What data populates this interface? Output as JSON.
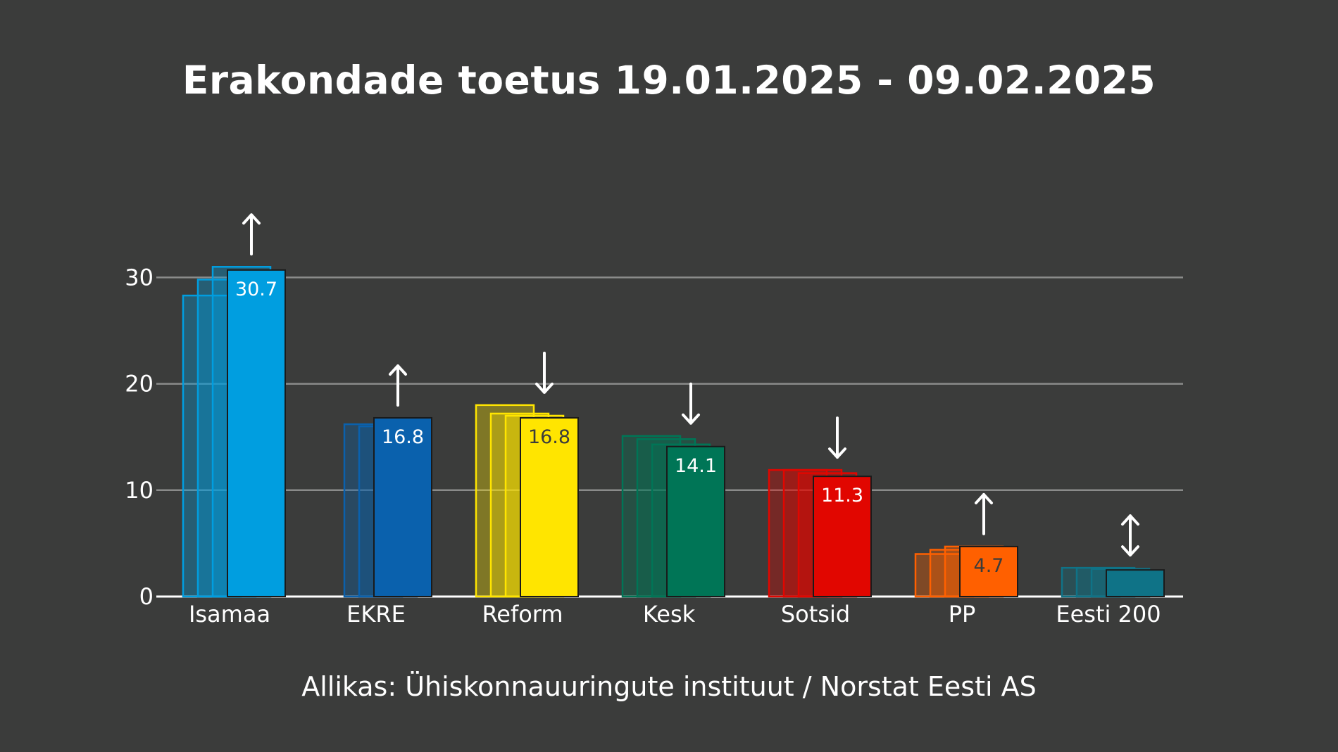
{
  "chart_data": {
    "type": "bar",
    "title": "Erakondade toetus 19.01.2025 - 09.02.2025",
    "source": "Allikas: Ühiskonnauuringute instituut / Norstat Eesti AS",
    "xlabel": "",
    "ylabel": "",
    "ylim": [
      0,
      35
    ],
    "yticks": [
      0,
      10,
      20,
      30
    ],
    "grid": true,
    "categories": [
      "Isamaa",
      "EKRE",
      "Reform",
      "Kesk",
      "Sotsid",
      "PP",
      "Eesti 200"
    ],
    "colors": [
      "#009ee0",
      "#0a61ad",
      "#ffe500",
      "#007556",
      "#e10600",
      "#ff6000",
      "#0f7387"
    ],
    "label_colors": [
      "#ffffff",
      "#ffffff",
      "#3b3c3b",
      "#ffffff",
      "#ffffff",
      "#3b3c3b",
      "#3b3c3b"
    ],
    "history": [
      [
        28.3,
        29.8,
        31.0
      ],
      [
        16.2,
        16.0
      ],
      [
        18.0,
        17.2,
        17.0
      ],
      [
        15.1,
        14.8,
        14.3
      ],
      [
        11.9,
        11.9,
        11.6
      ],
      [
        4.0,
        4.4,
        4.7
      ],
      [
        2.7,
        2.7,
        2.6
      ]
    ],
    "values": [
      30.7,
      16.8,
      16.8,
      14.1,
      11.3,
      4.7,
      2.5
    ],
    "data_labels": [
      "30.7",
      "16.8",
      "16.8",
      "14.1",
      "11.3",
      "4.7",
      ""
    ],
    "trend": [
      "up",
      "up",
      "down",
      "down",
      "down",
      "up",
      "both"
    ]
  }
}
